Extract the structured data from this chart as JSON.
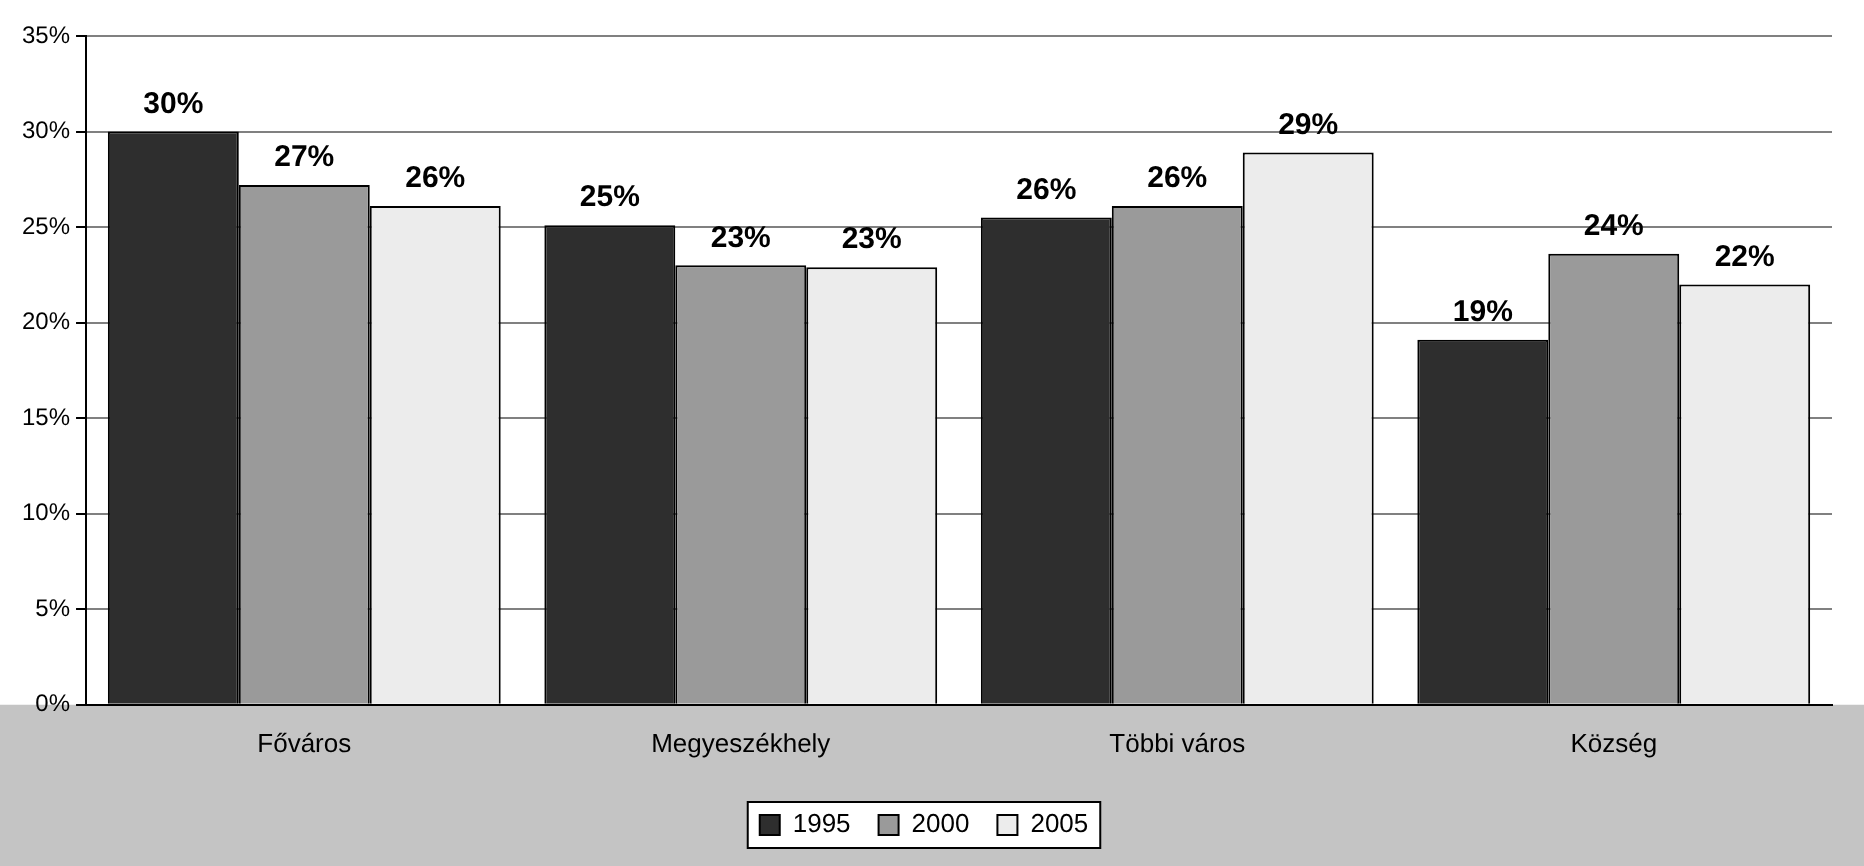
{
  "chart_data": {
    "type": "bar",
    "categories": [
      "Főváros",
      "Megyeszékhely",
      "Többi város",
      "Község"
    ],
    "series": [
      {
        "name": "1995",
        "color": "#2e2e2e",
        "values": [
          30.0,
          25.1,
          25.5,
          19.1
        ],
        "value_labels": [
          "30%",
          "25%",
          "26%",
          "19%"
        ]
      },
      {
        "name": "2000",
        "color": "#9a9a9a",
        "values": [
          27.2,
          23.0,
          26.1,
          23.6
        ],
        "value_labels": [
          "27%",
          "23%",
          "26%",
          "24%"
        ]
      },
      {
        "name": "2005",
        "color": "#ececec",
        "values": [
          26.1,
          22.9,
          28.9,
          22.0
        ],
        "value_labels": [
          "26%",
          "23%",
          "29%",
          "22%"
        ]
      }
    ],
    "ylim": [
      0,
      35
    ],
    "yticks": [
      {
        "value": 0,
        "label": "0%"
      },
      {
        "value": 5,
        "label": "5%"
      },
      {
        "value": 10,
        "label": "10%"
      },
      {
        "value": 15,
        "label": "15%"
      },
      {
        "value": 20,
        "label": "20%"
      },
      {
        "value": 25,
        "label": "25%"
      },
      {
        "value": 30,
        "label": "30%"
      },
      {
        "value": 35,
        "label": "35%"
      }
    ],
    "grid": "y",
    "legend": "bottom"
  }
}
